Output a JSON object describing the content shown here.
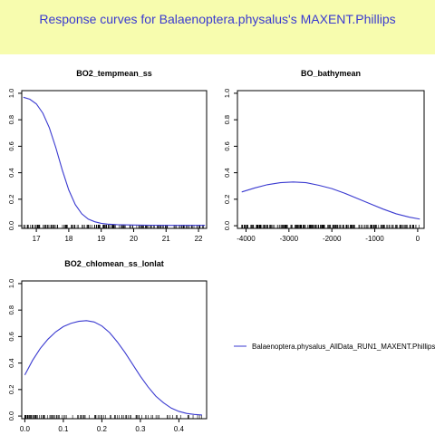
{
  "page": {
    "title": "Response curves for Balaenoptera.physalus's MAXENT.Phillips"
  },
  "colors": {
    "header_bg": "#f7fcae",
    "title": "#3a3ad0",
    "curve": "#3a3ad0",
    "axis": "#000000"
  },
  "legend": {
    "label": "Balaenoptera.physalus_AllData_RUN1_MAXENT.Phillips",
    "placement": "bottom-right"
  },
  "chart_data": [
    {
      "type": "line",
      "title": "BO2_tempmean_ss",
      "xlabel": "",
      "ylabel": "",
      "xlim": [
        16.55,
        22.25
      ],
      "ylim": [
        -0.02,
        1.02
      ],
      "xticks": [
        17,
        18,
        19,
        20,
        21,
        22
      ],
      "xtick_labels": [
        "17",
        "18",
        "19",
        "20",
        "21",
        "22"
      ],
      "yticks": [
        0,
        0.2,
        0.4,
        0.6,
        0.8,
        1.0
      ],
      "ytick_labels": [
        "0.0",
        "0.2",
        "0.4",
        "0.6",
        "0.8",
        "1.0"
      ],
      "series": [
        {
          "x": [
            16.6,
            16.8,
            17.0,
            17.2,
            17.4,
            17.6,
            17.8,
            18.0,
            18.2,
            18.4,
            18.6,
            18.8,
            19.0,
            19.2,
            19.5,
            20.0,
            20.5,
            21.0,
            21.5,
            22.2
          ],
          "y": [
            0.97,
            0.955,
            0.92,
            0.85,
            0.74,
            0.59,
            0.42,
            0.27,
            0.16,
            0.09,
            0.05,
            0.03,
            0.018,
            0.012,
            0.008,
            0.005,
            0.004,
            0.003,
            0.003,
            0.003
          ]
        }
      ],
      "rug": {
        "xmin": 16.6,
        "xmax": 22.2,
        "density": "dense"
      }
    },
    {
      "type": "line",
      "title": "BO_bathymean",
      "xlabel": "",
      "ylabel": "",
      "xlim": [
        -4200,
        150
      ],
      "ylim": [
        -0.02,
        1.02
      ],
      "xticks": [
        -4000,
        -3000,
        -2000,
        -1000,
        0
      ],
      "xtick_labels": [
        "-4000",
        "-3000",
        "-2000",
        "-1000",
        "0"
      ],
      "yticks": [
        0,
        0.2,
        0.4,
        0.6,
        0.8,
        1.0
      ],
      "ytick_labels": [
        "0.0",
        "0.2",
        "0.4",
        "0.6",
        "0.8",
        "1.0"
      ],
      "series": [
        {
          "x": [
            -4100,
            -3800,
            -3500,
            -3200,
            -2900,
            -2600,
            -2300,
            -2000,
            -1700,
            -1400,
            -1100,
            -800,
            -500,
            -200,
            50
          ],
          "y": [
            0.255,
            0.285,
            0.31,
            0.325,
            0.33,
            0.325,
            0.305,
            0.28,
            0.245,
            0.205,
            0.165,
            0.125,
            0.09,
            0.065,
            0.05
          ]
        }
      ],
      "rug": {
        "xmin": -4100,
        "xmax": 50,
        "density": "very-dense"
      }
    },
    {
      "type": "line",
      "title": "BO2_chlomean_ss_lonlat",
      "xlabel": "",
      "ylabel": "",
      "xlim": [
        -0.008,
        0.472
      ],
      "ylim": [
        -0.02,
        1.02
      ],
      "xticks": [
        0.0,
        0.1,
        0.2,
        0.3,
        0.4
      ],
      "xtick_labels": [
        "0.0",
        "0.1",
        "0.2",
        "0.3",
        "0.4"
      ],
      "yticks": [
        0,
        0.2,
        0.4,
        0.6,
        0.8,
        1.0
      ],
      "ytick_labels": [
        "0.0",
        "0.2",
        "0.4",
        "0.6",
        "0.8",
        "1.0"
      ],
      "series": [
        {
          "x": [
            0.0,
            0.02,
            0.04,
            0.06,
            0.08,
            0.1,
            0.12,
            0.14,
            0.16,
            0.18,
            0.2,
            0.22,
            0.24,
            0.26,
            0.28,
            0.3,
            0.32,
            0.34,
            0.36,
            0.38,
            0.4,
            0.42,
            0.44,
            0.46
          ],
          "y": [
            0.31,
            0.42,
            0.51,
            0.58,
            0.635,
            0.675,
            0.7,
            0.715,
            0.72,
            0.71,
            0.68,
            0.63,
            0.56,
            0.48,
            0.39,
            0.3,
            0.22,
            0.15,
            0.1,
            0.06,
            0.035,
            0.02,
            0.012,
            0.008
          ]
        }
      ],
      "rug": {
        "xmin": 0.0,
        "xmax": 0.46,
        "density": "medium"
      }
    }
  ]
}
